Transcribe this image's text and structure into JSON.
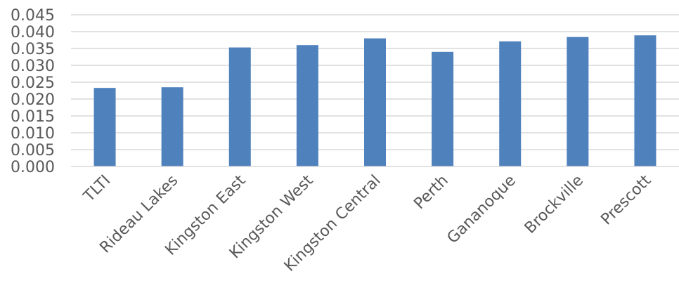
{
  "colors": {
    "bar": "#4f81bd",
    "grid": "#d9d9d9",
    "text": "#595959"
  },
  "chart_data": {
    "type": "bar",
    "title": "",
    "xlabel": "",
    "ylabel": "",
    "categories": [
      "TLTI",
      "Rideau Lakes",
      "Kingston East",
      "Kingston West",
      "Kingston Central",
      "Perth",
      "Gananoque",
      "Brockville",
      "Prescott"
    ],
    "values": [
      0.0233,
      0.0235,
      0.0353,
      0.036,
      0.038,
      0.034,
      0.0371,
      0.0384,
      0.0389
    ],
    "ylim": [
      0,
      0.045
    ],
    "yticks": [
      "0.000",
      "0.005",
      "0.010",
      "0.015",
      "0.020",
      "0.025",
      "0.030",
      "0.035",
      "0.040",
      "0.045"
    ],
    "grid": true,
    "legend": "none"
  }
}
